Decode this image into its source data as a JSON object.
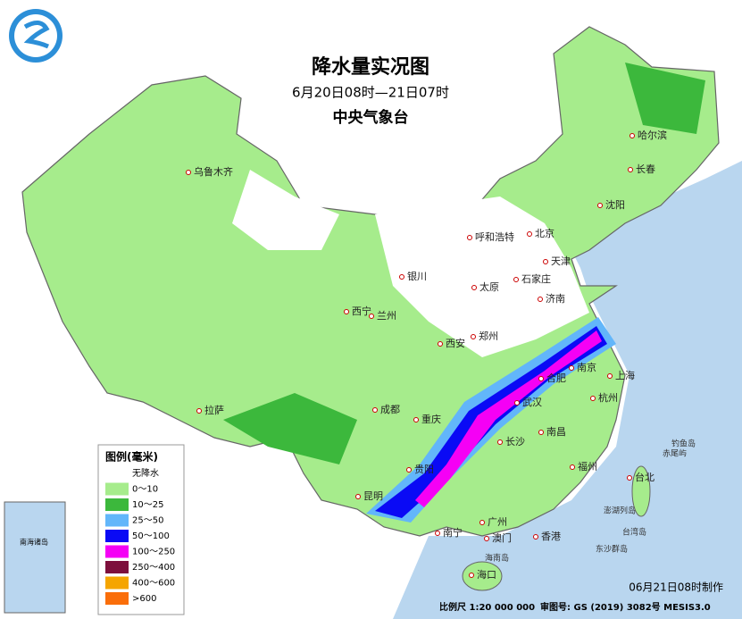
{
  "header": {
    "title": "降水量实况图",
    "period": "6月20日08时—21日07时",
    "issuer": "中央气象台"
  },
  "legend": {
    "title": "图例(毫米)",
    "items": [
      {
        "label": "无降水",
        "color": "#ffffff"
      },
      {
        "label": "0～10",
        "color": "#a6ec8c"
      },
      {
        "label": "10～25",
        "color": "#3cb83c"
      },
      {
        "label": "25～50",
        "color": "#62b6fa"
      },
      {
        "label": "50～100",
        "color": "#0a0af5"
      },
      {
        "label": "100～250",
        "color": "#f500f5"
      },
      {
        "label": "250～400",
        "color": "#7d0f3c"
      },
      {
        "label": "400～600",
        "color": "#f5a500"
      },
      {
        "label": ">600",
        "color": "#fa6e0a"
      }
    ]
  },
  "cities": [
    "北京",
    "天津",
    "哈尔滨",
    "长春",
    "沈阳",
    "乌鲁木齐",
    "呼和浩特",
    "石家庄",
    "太原",
    "济南",
    "银川",
    "西宁",
    "兰州",
    "西安",
    "郑州",
    "合肥",
    "南京",
    "上海",
    "杭州",
    "武汉",
    "成都",
    "重庆",
    "长沙",
    "南昌",
    "贵阳",
    "昆明",
    "南宁",
    "广州",
    "福州",
    "台北",
    "拉萨",
    "澳门",
    "香港",
    "海口"
  ],
  "islands": [
    "钓鱼岛",
    "赤尾屿",
    "澎湖列岛",
    "东沙群岛",
    "台湾岛",
    "海南岛"
  ],
  "inset": {
    "label": "南海诸岛"
  },
  "footer": {
    "made": "06月21日08时制作",
    "scale": "比例尺 1:20 000 000",
    "approval": "审图号: GS (2019) 3082号 MESIS3.0"
  }
}
